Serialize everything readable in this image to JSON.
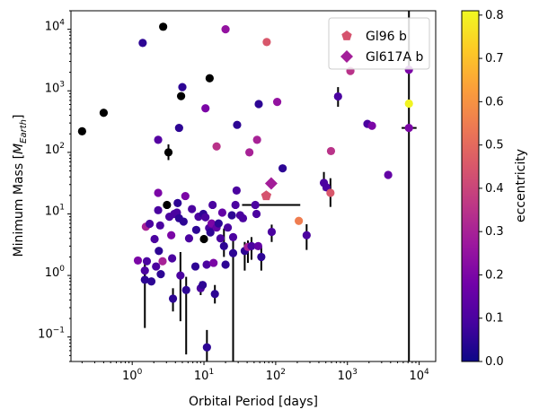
{
  "chart_data": {
    "type": "scatter",
    "title": "",
    "xlabel": "Orbital Period [days]",
    "ylabel_prefix": "Minimum Mass [",
    "ylabel_M": "M",
    "ylabel_sub": "Earth",
    "ylabel_suffix": "]",
    "xscale": "log",
    "yscale": "log",
    "xlim": [
      0.14,
      17000
    ],
    "ylim": [
      0.04,
      20000
    ],
    "xticks": [
      {
        "value": 1,
        "base": "10",
        "exp": "0"
      },
      {
        "value": 10,
        "base": "10",
        "exp": "1"
      },
      {
        "value": 100,
        "base": "10",
        "exp": "2"
      },
      {
        "value": 1000,
        "base": "10",
        "exp": "3"
      },
      {
        "value": 10000,
        "base": "10",
        "exp": "4"
      }
    ],
    "yticks": [
      {
        "value": 0.1,
        "base": "10",
        "exp": "−1"
      },
      {
        "value": 1,
        "base": "10",
        "exp": "0"
      },
      {
        "value": 10,
        "base": "10",
        "exp": "1"
      },
      {
        "value": 100,
        "base": "10",
        "exp": "2"
      },
      {
        "value": 1000,
        "base": "10",
        "exp": "3"
      },
      {
        "value": 10000,
        "base": "10",
        "exp": "4"
      }
    ],
    "grid": false,
    "legend_position": "top-right",
    "colormap": "plasma",
    "colormap_stops": [
      "#0d0887",
      "#46039f",
      "#7201a8",
      "#9c179e",
      "#bd3786",
      "#d8576b",
      "#ed7953",
      "#fb9f3a",
      "#fdca26",
      "#f0f921"
    ],
    "colorbar": {
      "label": "eccentricity",
      "range": [
        0,
        0.81
      ],
      "ticks": [
        "0.0",
        "0.1",
        "0.2",
        "0.3",
        "0.4",
        "0.5",
        "0.6",
        "0.7",
        "0.8"
      ]
    },
    "series": [
      {
        "name": "",
        "marker": "circle",
        "points": [
          {
            "x": 0.2,
            "y": 220,
            "e": null
          },
          {
            "x": 0.4,
            "y": 440,
            "e": null
          },
          {
            "x": 1.4,
            "y": 6000,
            "e": 0.05
          },
          {
            "x": 2.7,
            "y": 11000,
            "e": null
          },
          {
            "x": 3.2,
            "y": 100,
            "e": null,
            "ylo": 75,
            "yhi": 135
          },
          {
            "x": 2.3,
            "y": 160,
            "e": 0.12
          },
          {
            "x": 4.5,
            "y": 250,
            "e": 0.05
          },
          {
            "x": 5,
            "y": 1150,
            "e": 0.05
          },
          {
            "x": 4.8,
            "y": 820,
            "e": null
          },
          {
            "x": 10.5,
            "y": 520,
            "e": 0.2
          },
          {
            "x": 12,
            "y": 1600,
            "e": null
          },
          {
            "x": 20,
            "y": 10000,
            "e": 0.25
          },
          {
            "x": 15,
            "y": 125,
            "e": 0.35
          },
          {
            "x": 29,
            "y": 280,
            "e": 0.05
          },
          {
            "x": 43,
            "y": 100,
            "e": 0.3
          },
          {
            "x": 55,
            "y": 160,
            "e": 0.3
          },
          {
            "x": 58,
            "y": 610,
            "e": 0.05
          },
          {
            "x": 75,
            "y": 6200,
            "e": 0.45
          },
          {
            "x": 105,
            "y": 660,
            "e": 0.25
          },
          {
            "x": 125,
            "y": 55,
            "e": 0.05
          },
          {
            "x": 590,
            "y": 105,
            "e": 0.35
          },
          {
            "x": 740,
            "y": 810,
            "e": 0.1,
            "ylo": 550,
            "yhi": 1150
          },
          {
            "x": 1100,
            "y": 2100,
            "e": 0.35
          },
          {
            "x": 1900,
            "y": 290,
            "e": 0.1
          },
          {
            "x": 2200,
            "y": 270,
            "e": 0.2
          },
          {
            "x": 3700,
            "y": 43,
            "e": 0.15
          },
          {
            "x": 7200,
            "y": 2200,
            "e": 0.2
          },
          {
            "x": 7200,
            "y": 620,
            "e": 0.8,
            "ylo": 0.028,
            "yhi": 22000
          },
          {
            "x": 7200,
            "y": 250,
            "e": 0.2,
            "xlo": 5700,
            "xhi": 9200
          },
          {
            "x": 1.2,
            "y": 1.75,
            "e": 0.2,
            "ylo": 1.55,
            "yhi": 1.95
          },
          {
            "x": 1.5,
            "y": 1.2,
            "e": 0.1,
            "ylo": 0.8,
            "yhi": 1.6
          },
          {
            "x": 1.5,
            "y": 0.85,
            "e": 0.05,
            "ylo": 0.14,
            "yhi": 1.2
          },
          {
            "x": 1.6,
            "y": 1.7,
            "e": 0.1
          },
          {
            "x": 1.55,
            "y": 6.2,
            "e": 0.3
          },
          {
            "x": 1.75,
            "y": 6.9,
            "e": 0.1
          },
          {
            "x": 1.85,
            "y": 0.8,
            "e": 0.05
          },
          {
            "x": 2.05,
            "y": 3.9,
            "e": 0.1
          },
          {
            "x": 2.15,
            "y": 1.4,
            "e": 0.1
          },
          {
            "x": 2.3,
            "y": 11.5,
            "e": 0.1
          },
          {
            "x": 2.3,
            "y": 22,
            "e": 0.2
          },
          {
            "x": 2.35,
            "y": 2.5,
            "e": 0.05
          },
          {
            "x": 2.45,
            "y": 6.5,
            "e": 0.1
          },
          {
            "x": 2.5,
            "y": 1.05,
            "e": 0.05
          },
          {
            "x": 2.65,
            "y": 1.7,
            "e": 0.3
          },
          {
            "x": 3.05,
            "y": 14,
            "e": null
          },
          {
            "x": 3.3,
            "y": 9,
            "e": 0.1
          },
          {
            "x": 3.5,
            "y": 4.5,
            "e": 0.2
          },
          {
            "x": 3.6,
            "y": 1.9,
            "e": 0.1
          },
          {
            "x": 3.7,
            "y": 0.42,
            "e": 0.05,
            "ylo": 0.26,
            "yhi": 0.62
          },
          {
            "x": 3.85,
            "y": 10,
            "e": 0.1
          },
          {
            "x": 4.2,
            "y": 10.5,
            "e": 0.1
          },
          {
            "x": 4.3,
            "y": 15,
            "e": 0.05
          },
          {
            "x": 4.5,
            "y": 8.5,
            "e": 0.05
          },
          {
            "x": 4.7,
            "y": 1,
            "e": 0.1,
            "ylo": 0.18,
            "yhi": 2.4
          },
          {
            "x": 5.2,
            "y": 7.5,
            "e": 0.05
          },
          {
            "x": 5.5,
            "y": 19.5,
            "e": 0.2
          },
          {
            "x": 5.65,
            "y": 0.58,
            "e": 0.05,
            "ylo": 0.052,
            "yhi": 0.95
          },
          {
            "x": 6.2,
            "y": 4,
            "e": 0.1
          },
          {
            "x": 6.8,
            "y": 12,
            "e": 0.1
          },
          {
            "x": 7.6,
            "y": 1.4,
            "e": 0.05
          },
          {
            "x": 7.8,
            "y": 5.5,
            "e": 0.05
          },
          {
            "x": 8.4,
            "y": 9,
            "e": 0.1
          },
          {
            "x": 9,
            "y": 0.62,
            "e": 0.1,
            "ylo": 0.48,
            "yhi": 0.8
          },
          {
            "x": 9.6,
            "y": 0.7,
            "e": 0.05
          },
          {
            "x": 9.8,
            "y": 10,
            "e": 0.05
          },
          {
            "x": 10,
            "y": 3.9,
            "e": null
          },
          {
            "x": 10.5,
            "y": 8.8,
            "e": 0.1
          },
          {
            "x": 10.9,
            "y": 1.5,
            "e": 0.1
          },
          {
            "x": 11,
            "y": 0.068,
            "e": 0.05,
            "ylo": 0.04,
            "yhi": 0.13
          },
          {
            "x": 11.8,
            "y": 5.9,
            "e": 0.1
          },
          {
            "x": 12.3,
            "y": 5,
            "e": 0.05
          },
          {
            "x": 12.8,
            "y": 7,
            "e": 0.2
          },
          {
            "x": 13.2,
            "y": 14,
            "e": 0.1
          },
          {
            "x": 13.6,
            "y": 1.6,
            "e": 0.2
          },
          {
            "x": 14.2,
            "y": 0.5,
            "e": 0.05,
            "ylo": 0.35,
            "yhi": 0.7
          },
          {
            "x": 15,
            "y": 6,
            "e": 0.15
          },
          {
            "x": 16,
            "y": 7,
            "e": 0.05
          },
          {
            "x": 17,
            "y": 4,
            "e": 0.1
          },
          {
            "x": 18,
            "y": 10.5,
            "e": 0.15
          },
          {
            "x": 19,
            "y": 3,
            "e": 0.05,
            "ylo": 2,
            "yhi": 5.8
          },
          {
            "x": 20,
            "y": 1.5,
            "e": 0.05
          },
          {
            "x": 21.5,
            "y": 6,
            "e": 0.1
          },
          {
            "x": 24.5,
            "y": 9.5,
            "e": 0.05
          },
          {
            "x": 25.5,
            "y": 4.2,
            "e": 0.1
          },
          {
            "x": 25.5,
            "y": 2.3,
            "e": 0.05,
            "ylo": 0.022,
            "yhi": 4
          },
          {
            "x": 27.5,
            "y": 14,
            "e": 0.1
          },
          {
            "x": 28.5,
            "y": 24,
            "e": 0.1
          },
          {
            "x": 32,
            "y": 9.5,
            "e": 0.1
          },
          {
            "x": 35,
            "y": 8.5,
            "e": 0.1
          },
          {
            "x": 37,
            "y": 2.5,
            "e": 0.05,
            "ylo": 1.2,
            "yhi": 3.5
          },
          {
            "x": 41,
            "y": 2.9,
            "e": 0.3,
            "ylo": 1.6,
            "yhi": 3.7
          },
          {
            "x": 46,
            "y": 3,
            "e": 0.1,
            "ylo": 1.8,
            "yhi": 4.2
          },
          {
            "x": 52,
            "y": 14,
            "e": 0.1,
            "xlo": 34,
            "xhi": 220
          },
          {
            "x": 54,
            "y": 10,
            "e": 0.1
          },
          {
            "x": 57,
            "y": 3,
            "e": 0.15
          },
          {
            "x": 63,
            "y": 2,
            "e": 0.05,
            "ylo": 1.2,
            "yhi": 3
          },
          {
            "x": 88,
            "y": 5.1,
            "e": 0.1,
            "ylo": 3.5,
            "yhi": 6.7
          },
          {
            "x": 210,
            "y": 7.7,
            "e": 0.55
          },
          {
            "x": 270,
            "y": 4.5,
            "e": 0.1,
            "ylo": 2.6,
            "yhi": 6.8
          },
          {
            "x": 470,
            "y": 32,
            "e": 0.1,
            "ylo": 24,
            "yhi": 48
          },
          {
            "x": 510,
            "y": 27,
            "e": 0.1
          },
          {
            "x": 580,
            "y": 22,
            "e": 0.45,
            "ylo": 13,
            "yhi": 38
          }
        ]
      },
      {
        "name": "Gl96 b",
        "marker": "pentagon",
        "points": [
          {
            "x": 73.9,
            "y": 19.7,
            "e": 0.44
          }
        ]
      },
      {
        "name": "Gl617A b",
        "marker": "diamond",
        "points": [
          {
            "x": 86.7,
            "y": 31.3,
            "e": 0.29
          }
        ]
      }
    ]
  }
}
